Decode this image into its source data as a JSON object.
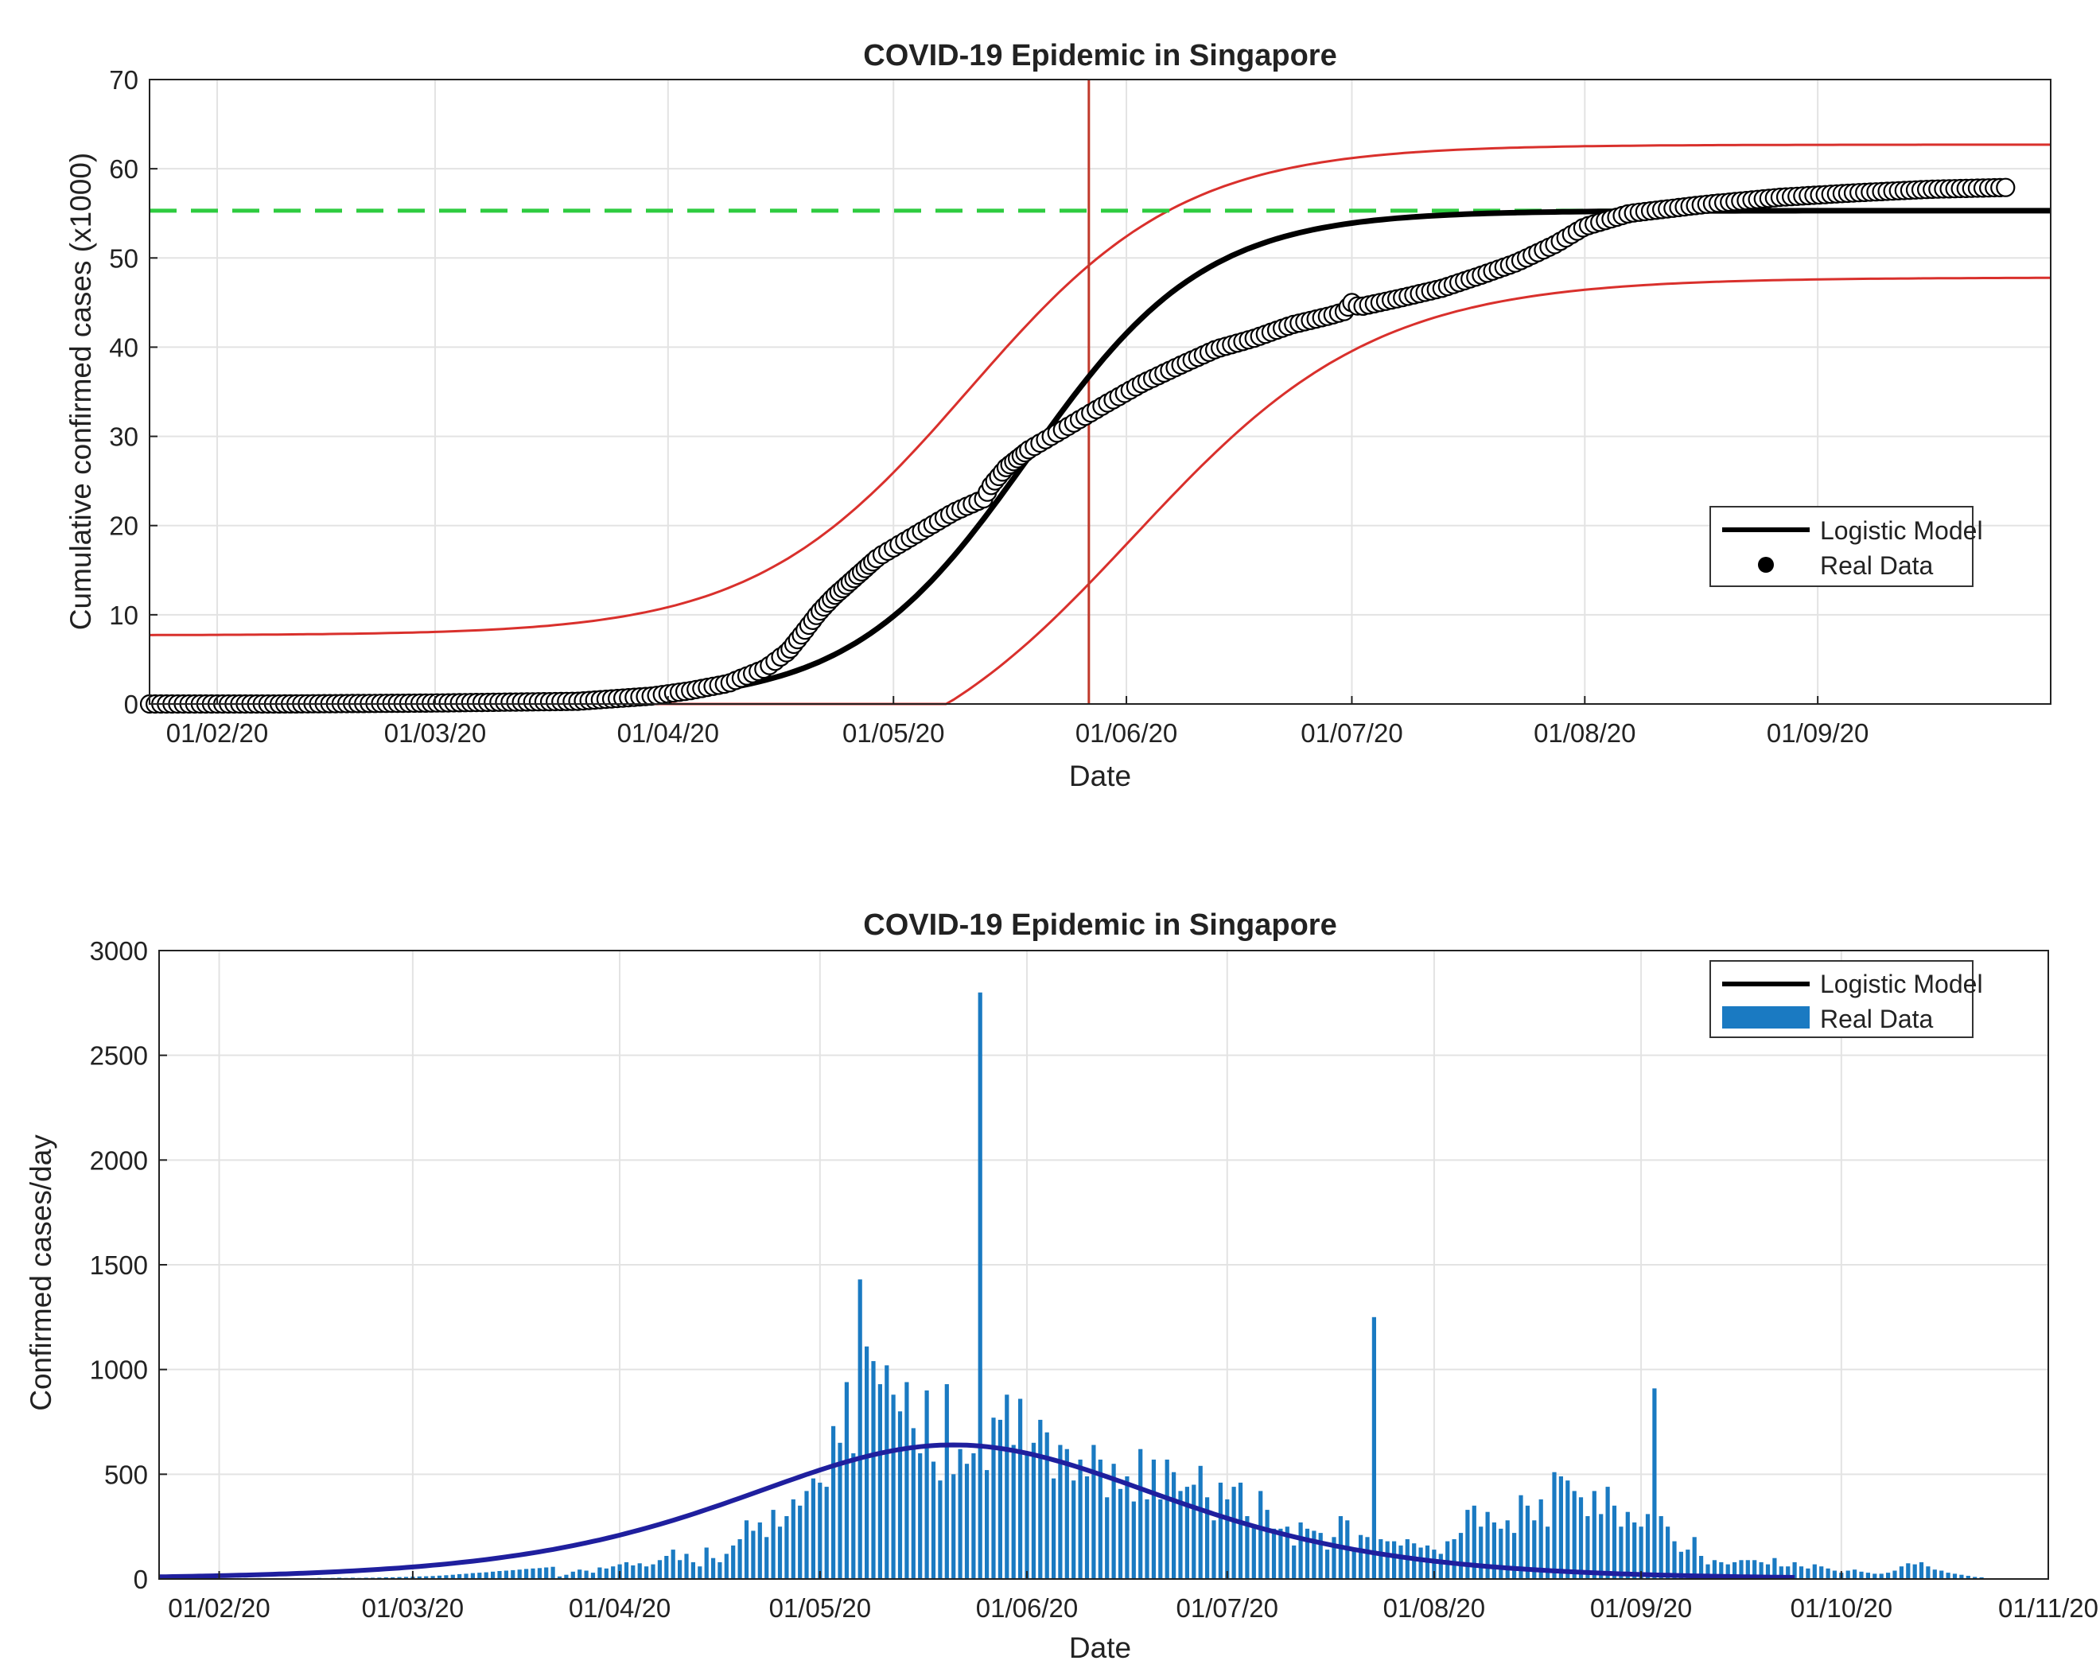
{
  "chart_data": [
    {
      "type": "line",
      "title": "COVID-19 Epidemic in Singapore",
      "xlabel": "Date",
      "ylabel": "Cumulative confirmed cases (x1000)",
      "x_unit": "day of 2020 (1 = 01/01/20)",
      "xlim": [
        23,
        276
      ],
      "ylim": [
        0,
        70
      ],
      "yticks": [
        0,
        10,
        20,
        30,
        40,
        50,
        60,
        70
      ],
      "xtick_days": [
        32,
        61,
        92,
        122,
        153,
        183,
        214,
        245
      ],
      "xtick_labels": [
        "01/02/20",
        "01/03/20",
        "01/04/20",
        "01/05/20",
        "01/06/20",
        "01/07/20",
        "01/08/20",
        "01/09/20"
      ],
      "grid": true,
      "logistic_model": {
        "K": 55.3,
        "r": 0.085,
        "t0": 140
      },
      "confidence_band": {
        "upper": {
          "K": 55,
          "r": 0.07,
          "t0": 132,
          "offset": 7.7
        },
        "lower": {
          "K": 58,
          "r": 0.062,
          "t0": 154,
          "offset": -10.2
        }
      },
      "reference_lines": {
        "plateau_y": 55.3,
        "peak_day": 148
      },
      "real_data": {
        "day": [
          23,
          40,
          60,
          80,
          90,
          95,
          100,
          105,
          108,
          110,
          112,
          114,
          116,
          118,
          120,
          125,
          130,
          134,
          135,
          137,
          140,
          145,
          150,
          155,
          160,
          165,
          170,
          175,
          180,
          182,
          183,
          184,
          190,
          195,
          200,
          205,
          210,
          212,
          214,
          220,
          230,
          240,
          250,
          260,
          270
        ],
        "value": [
          0,
          0,
          0.1,
          0.3,
          0.9,
          1.5,
          2.3,
          4,
          5.9,
          8,
          10.2,
          12,
          13.5,
          15,
          16.5,
          19,
          21.5,
          23,
          24.5,
          26.5,
          28.5,
          31,
          33.5,
          35.9,
          37.9,
          39.8,
          41,
          42.5,
          43.5,
          44,
          45,
          44.5,
          45.6,
          46.6,
          48,
          49.5,
          51.5,
          52.5,
          53.5,
          55,
          56,
          56.8,
          57.3,
          57.7,
          57.9
        ]
      },
      "legend": {
        "position": "right",
        "entries": [
          "Logistic Model",
          "Real Data"
        ]
      }
    },
    {
      "type": "bar",
      "title": "COVID-19 Epidemic in Singapore",
      "xlabel": "Date",
      "ylabel": "Confirmed cases/day",
      "x_unit": "day of 2020 (1 = 01/01/20)",
      "xlim": [
        23,
        306
      ],
      "ylim": [
        0,
        3000
      ],
      "yticks": [
        0,
        500,
        1000,
        1500,
        2000,
        2500,
        3000
      ],
      "xtick_days": [
        32,
        61,
        92,
        122,
        153,
        183,
        214,
        245,
        275,
        306
      ],
      "xtick_labels": [
        "01/02/20",
        "01/03/20",
        "01/04/20",
        "01/05/20",
        "01/06/20",
        "01/07/20",
        "01/08/20",
        "01/09/20",
        "01/10/20",
        "01/11/20"
      ],
      "grid": true,
      "logistic_model": {
        "peak": 640,
        "t0": 142,
        "r": 0.0463,
        "x_end": 268
      },
      "real_data": {
        "start_day": 23,
        "values": [
          0,
          0,
          0,
          1,
          1,
          1,
          2,
          2,
          3,
          3,
          2,
          3,
          4,
          4,
          3,
          4,
          3,
          2,
          3,
          4,
          3,
          4,
          3,
          4,
          5,
          4,
          5,
          6,
          5,
          6,
          5,
          6,
          6,
          7,
          8,
          8,
          9,
          10,
          11,
          12,
          13,
          14,
          16,
          18,
          20,
          23,
          25,
          28,
          30,
          32,
          35,
          38,
          40,
          42,
          45,
          48,
          50,
          52,
          55,
          58,
          12,
          20,
          35,
          45,
          40,
          30,
          55,
          50,
          60,
          70,
          80,
          65,
          75,
          60,
          70,
          90,
          110,
          140,
          90,
          120,
          80,
          60,
          150,
          100,
          80,
          120,
          160,
          190,
          280,
          230,
          270,
          200,
          330,
          250,
          300,
          380,
          350,
          420,
          480,
          460,
          440,
          730,
          650,
          940,
          600,
          1430,
          1110,
          1040,
          930,
          1020,
          880,
          800,
          940,
          720,
          600,
          900,
          560,
          470,
          930,
          500,
          620,
          550,
          600,
          2800,
          520,
          770,
          760,
          880,
          640,
          860,
          600,
          650,
          760,
          700,
          480,
          640,
          620,
          470,
          570,
          490,
          640,
          570,
          390,
          550,
          430,
          490,
          370,
          620,
          380,
          570,
          380,
          570,
          510,
          420,
          440,
          450,
          540,
          390,
          280,
          460,
          380,
          440,
          460,
          300,
          260,
          420,
          330,
          240,
          240,
          250,
          160,
          270,
          240,
          230,
          220,
          140,
          200,
          300,
          280,
          150,
          210,
          200,
          1250,
          190,
          180,
          180,
          160,
          190,
          170,
          150,
          160,
          140,
          120,
          180,
          190,
          220,
          330,
          350,
          250,
          320,
          270,
          240,
          280,
          220,
          400,
          350,
          280,
          380,
          250,
          510,
          490,
          470,
          420,
          390,
          300,
          420,
          310,
          440,
          350,
          250,
          320,
          270,
          250,
          310,
          910,
          300,
          250,
          180,
          130,
          140,
          200,
          110,
          70,
          90,
          80,
          70,
          80,
          90,
          90,
          90,
          80,
          70,
          100,
          60,
          60,
          80,
          60,
          50,
          70,
          60,
          50,
          40,
          30,
          40,
          45,
          35,
          30,
          25,
          25,
          30,
          40,
          60,
          75,
          70,
          80,
          60,
          45,
          40,
          30,
          25,
          20,
          15,
          10,
          8
        ]
      },
      "legend": {
        "position": "top-right",
        "entries": [
          "Logistic Model",
          "Real Data"
        ]
      }
    }
  ],
  "colors": {
    "model": "#000000",
    "band": "#d9302c",
    "plateau": "#2ecc40",
    "peak": "#c0392b",
    "bar": "#1a7ac2",
    "curve": "#1f1f9e"
  }
}
